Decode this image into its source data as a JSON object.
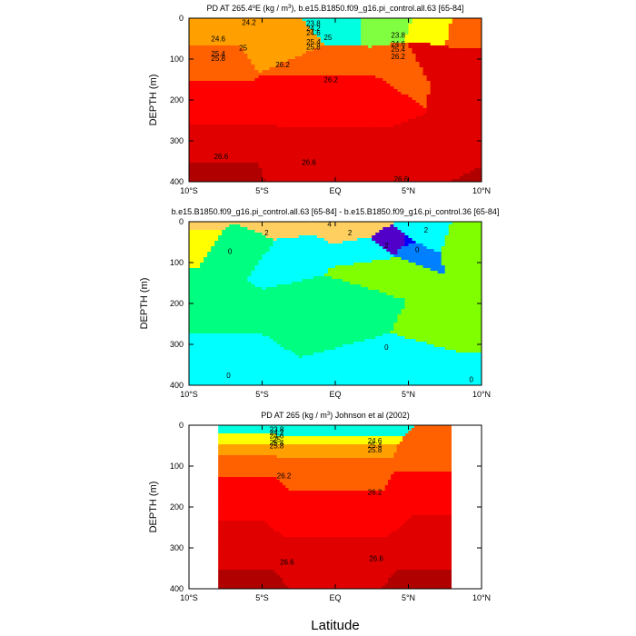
{
  "chart_data": [
    {
      "type": "heatmap",
      "title": "PD AT 265.4°E (kg / m³), b.e15.B1850.f09_g16.pi_control.all.63 [65-84]",
      "title_parts": {
        "pre": "PD AT 265.4",
        "deg": "o",
        "mid": "E (kg / m",
        "sup": "3",
        "post": "), b.e15.B1850.f09_g16.pi_control.all.63 [65-84]"
      },
      "ylabel": "DEPTH (m)",
      "xlabel": "",
      "xlim": [
        -10,
        10
      ],
      "ylim": [
        400,
        0
      ],
      "xticks": [
        {
          "v": -10,
          "label": "10°S"
        },
        {
          "v": -5,
          "label": "5°S"
        },
        {
          "v": 0,
          "label": "EQ"
        },
        {
          "v": 5,
          "label": "5°N"
        },
        {
          "v": 10,
          "label": "10°N"
        }
      ],
      "yticks": [
        {
          "v": 0,
          "label": "0"
        },
        {
          "v": 100,
          "label": "100"
        },
        {
          "v": 200,
          "label": "200"
        },
        {
          "v": 300,
          "label": "300"
        },
        {
          "v": 400,
          "label": "400"
        }
      ],
      "colors": [
        "#00a0ff",
        "#00ffe0",
        "#80ff40",
        "#ffff00",
        "#ffd000",
        "#ffa000",
        "#ff6000",
        "#ff0000",
        "#e00000",
        "#b00000"
      ],
      "color_levels": [
        [
          0,
          20,
          1
        ],
        [
          3.5,
          20,
          2
        ],
        [
          6.5,
          30,
          3
        ],
        [
          -10,
          40,
          5
        ],
        [
          -3,
          45,
          5
        ],
        [
          9,
          35,
          6
        ],
        [
          -10,
          90,
          6
        ],
        [
          0,
          110,
          6
        ],
        [
          5,
          100,
          6
        ],
        [
          -10,
          210,
          7
        ],
        [
          0,
          170,
          7
        ],
        [
          6,
          95,
          8
        ],
        [
          9,
          110,
          8
        ],
        [
          -10,
          310,
          8
        ],
        [
          0,
          360,
          8
        ],
        [
          8,
          360,
          8
        ],
        [
          -10,
          400,
          9
        ],
        [
          10,
          400,
          9
        ]
      ],
      "contour_labels": [
        {
          "x": -5.9,
          "y": 10,
          "text": "24.2"
        },
        {
          "x": -8.0,
          "y": 50,
          "text": "24.6"
        },
        {
          "x": -6.3,
          "y": 72,
          "text": "25"
        },
        {
          "x": -8.0,
          "y": 87,
          "text": "25.4"
        },
        {
          "x": -8.0,
          "y": 98,
          "text": "25.8"
        },
        {
          "x": -3.6,
          "y": 113,
          "text": "26.2"
        },
        {
          "x": -1.5,
          "y": 12,
          "text": "23.8"
        },
        {
          "x": -1.5,
          "y": 24,
          "text": "24.2"
        },
        {
          "x": -1.5,
          "y": 36,
          "text": "24.6"
        },
        {
          "x": -0.5,
          "y": 47,
          "text": "25"
        },
        {
          "x": -1.5,
          "y": 58,
          "text": "25.4"
        },
        {
          "x": -1.5,
          "y": 70,
          "text": "25.8"
        },
        {
          "x": -0.3,
          "y": 150,
          "text": "26.2"
        },
        {
          "x": 4.3,
          "y": 41,
          "text": "23.8"
        },
        {
          "x": 4.3,
          "y": 62,
          "text": "24.6"
        },
        {
          "x": 4.3,
          "y": 75,
          "text": "25.4"
        },
        {
          "x": 4.3,
          "y": 93,
          "text": "26.2"
        },
        {
          "x": -7.8,
          "y": 338,
          "text": "26.6"
        },
        {
          "x": -1.8,
          "y": 352,
          "text": "26.6"
        },
        {
          "x": 4.5,
          "y": 393,
          "text": "26.6"
        }
      ]
    },
    {
      "type": "heatmap",
      "title": "b.e15.B1850.f09_g16.pi_control.all.63 [65-84] - b.e15.B1850.f09_g16.pi_control.36 [65-84]",
      "ylabel": "DEPTH (m)",
      "xlabel": "",
      "xlim": [
        -10,
        10
      ],
      "ylim": [
        400,
        0
      ],
      "xticks": [
        {
          "v": -10,
          "label": "10°S"
        },
        {
          "v": -5,
          "label": "5°S"
        },
        {
          "v": 0,
          "label": "EQ"
        },
        {
          "v": 5,
          "label": "5°N"
        },
        {
          "v": 10,
          "label": "10°N"
        }
      ],
      "yticks": [
        {
          "v": 0,
          "label": "0"
        },
        {
          "v": 100,
          "label": "100"
        },
        {
          "v": 200,
          "label": "200"
        },
        {
          "v": 300,
          "label": "300"
        },
        {
          "v": 400,
          "label": "400"
        }
      ],
      "colors": [
        "#5000c8",
        "#0000ff",
        "#0080ff",
        "#00ffff",
        "#00ff80",
        "#80ff00",
        "#ffff00",
        "#ffd060"
      ],
      "color_levels": [
        [
          -10,
          5,
          7
        ],
        [
          -4,
          8,
          7
        ],
        [
          1,
          5,
          7
        ],
        [
          -10,
          30,
          6
        ],
        [
          -6,
          55,
          4
        ],
        [
          -3,
          75,
          3
        ],
        [
          -10,
          200,
          4
        ],
        [
          0,
          200,
          4
        ],
        [
          9,
          50,
          5
        ],
        [
          5,
          60,
          2
        ],
        [
          4.8,
          55,
          1
        ],
        [
          4.5,
          55,
          0
        ],
        [
          6,
          40,
          3
        ],
        [
          2.5,
          80,
          3
        ],
        [
          3,
          110,
          5
        ],
        [
          9,
          240,
          5
        ],
        [
          -10,
          350,
          3
        ],
        [
          5,
          370,
          3
        ],
        [
          10,
          400,
          3
        ],
        [
          -10,
          400,
          3
        ]
      ],
      "contour_labels": [
        {
          "x": -0.4,
          "y": 5,
          "text": "4"
        },
        {
          "x": -4.7,
          "y": 27,
          "text": "2"
        },
        {
          "x": 1.0,
          "y": 27,
          "text": "2"
        },
        {
          "x": -7.2,
          "y": 72,
          "text": "0"
        },
        {
          "x": 5.6,
          "y": 68,
          "text": "0"
        },
        {
          "x": 3.5,
          "y": 58,
          "text": "2"
        },
        {
          "x": 6.2,
          "y": 20,
          "text": "2"
        },
        {
          "x": -7.3,
          "y": 375,
          "text": "0"
        },
        {
          "x": 3.5,
          "y": 307,
          "text": "0"
        },
        {
          "x": 9.3,
          "y": 385,
          "text": "0"
        }
      ]
    },
    {
      "type": "heatmap",
      "title": "PD AT 265 (kg / m³) Johnson et al (2002)",
      "title_parts": {
        "pre": "PD AT 265 (kg / m",
        "sup": "3",
        "post": ") Johnson et al (2002)"
      },
      "ylabel": "DEPTH (m)",
      "xlabel": "Latitude",
      "xlim": [
        -10,
        10
      ],
      "ylim": [
        400,
        0
      ],
      "data_xlim": [
        -8,
        8
      ],
      "xticks": [
        {
          "v": -10,
          "label": "10°S"
        },
        {
          "v": -5,
          "label": "5°S"
        },
        {
          "v": 0,
          "label": "EQ"
        },
        {
          "v": 5,
          "label": "5°N"
        },
        {
          "v": 10,
          "label": "10°N"
        }
      ],
      "yticks": [
        {
          "v": 0,
          "label": "0"
        },
        {
          "v": 100,
          "label": "100"
        },
        {
          "v": 200,
          "label": "200"
        },
        {
          "v": 300,
          "label": "300"
        },
        {
          "v": 400,
          "label": "400"
        }
      ],
      "colors": [
        "#00a0ff",
        "#00ffe0",
        "#80ff40",
        "#ffff00",
        "#ffd000",
        "#ffa000",
        "#ff6000",
        "#ff0000",
        "#e00000",
        "#b00000"
      ],
      "color_levels": [
        [
          -8,
          15,
          1
        ],
        [
          0,
          15,
          1
        ],
        [
          -8,
          30,
          3
        ],
        [
          0,
          35,
          3
        ],
        [
          -8,
          60,
          5
        ],
        [
          0,
          60,
          5
        ],
        [
          -8,
          90,
          6
        ],
        [
          0,
          95,
          6
        ],
        [
          8,
          90,
          6
        ],
        [
          -8,
          160,
          7
        ],
        [
          0,
          220,
          7
        ],
        [
          8,
          140,
          7
        ],
        [
          -8,
          300,
          8
        ],
        [
          0,
          330,
          8
        ],
        [
          8,
          300,
          8
        ],
        [
          -8,
          400,
          9
        ],
        [
          8,
          400,
          9
        ]
      ],
      "contour_labels": [
        {
          "x": -4.0,
          "y": 10,
          "text": "23.8"
        },
        {
          "x": -4.0,
          "y": 18,
          "text": "24.2"
        },
        {
          "x": -4.0,
          "y": 26,
          "text": "24.6"
        },
        {
          "x": -4.0,
          "y": 34,
          "text": "25"
        },
        {
          "x": -4.0,
          "y": 42,
          "text": "25.4"
        },
        {
          "x": -4.0,
          "y": 50,
          "text": "25.8"
        },
        {
          "x": -3.5,
          "y": 123,
          "text": "26.2"
        },
        {
          "x": 2.7,
          "y": 38,
          "text": "24.6"
        },
        {
          "x": 2.7,
          "y": 49,
          "text": "25.4"
        },
        {
          "x": 2.7,
          "y": 60,
          "text": "25.8"
        },
        {
          "x": 2.7,
          "y": 163,
          "text": "26.2"
        },
        {
          "x": -3.3,
          "y": 334,
          "text": "26.6"
        },
        {
          "x": 2.8,
          "y": 325,
          "text": "26.6"
        }
      ]
    }
  ]
}
